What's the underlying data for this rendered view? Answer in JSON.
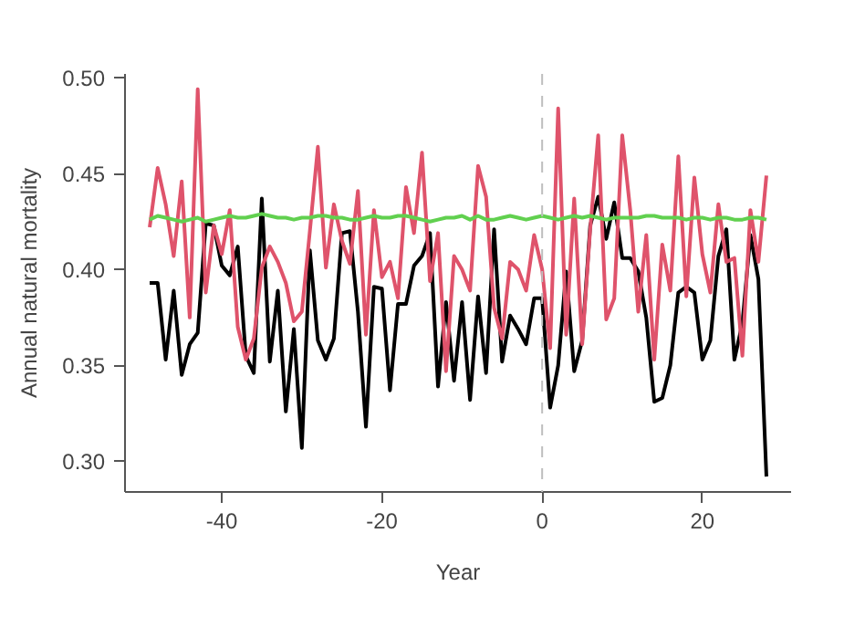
{
  "chart_data": {
    "type": "line",
    "xlabel": "Year",
    "ylabel": "Annual natural mortality",
    "x": [
      -49,
      -48,
      -47,
      -46,
      -45,
      -44,
      -43,
      -42,
      -41,
      -40,
      -39,
      -38,
      -37,
      -36,
      -35,
      -34,
      -33,
      -32,
      -31,
      -30,
      -29,
      -28,
      -27,
      -26,
      -25,
      -24,
      -23,
      -22,
      -21,
      -20,
      -19,
      -18,
      -17,
      -16,
      -15,
      -14,
      -13,
      -12,
      -11,
      -10,
      -9,
      -8,
      -7,
      -6,
      -5,
      -4,
      -3,
      -2,
      -1,
      0,
      1,
      2,
      3,
      4,
      5,
      6,
      7,
      8,
      9,
      10,
      11,
      12,
      13,
      14,
      15,
      16,
      17,
      18,
      19,
      20,
      21,
      22,
      23,
      24,
      25,
      26,
      27,
      28
    ],
    "series": [
      {
        "color": "#000000",
        "values": [
          0.393,
          0.393,
          0.353,
          0.389,
          0.345,
          0.361,
          0.367,
          0.424,
          0.423,
          0.402,
          0.397,
          0.412,
          0.355,
          0.346,
          0.437,
          0.352,
          0.389,
          0.326,
          0.369,
          0.307,
          0.41,
          0.363,
          0.353,
          0.364,
          0.419,
          0.42,
          0.378,
          0.318,
          0.391,
          0.39,
          0.337,
          0.382,
          0.382,
          0.402,
          0.407,
          0.419,
          0.339,
          0.383,
          0.342,
          0.383,
          0.332,
          0.386,
          0.346,
          0.421,
          0.352,
          0.376,
          0.369,
          0.361,
          0.385,
          0.385,
          0.328,
          0.35,
          0.399,
          0.347,
          0.363,
          0.423,
          0.438,
          0.416,
          0.435,
          0.406,
          0.406,
          0.399,
          0.375,
          0.331,
          0.333,
          0.35,
          0.388,
          0.391,
          0.388,
          0.353,
          0.363,
          0.407,
          0.421,
          0.353,
          0.372,
          0.418,
          0.395,
          0.292
        ]
      },
      {
        "color": "#df536b",
        "values": [
          0.422,
          0.453,
          0.434,
          0.407,
          0.446,
          0.375,
          0.494,
          0.388,
          0.423,
          0.408,
          0.431,
          0.37,
          0.353,
          0.364,
          0.401,
          0.412,
          0.404,
          0.393,
          0.373,
          0.378,
          0.42,
          0.464,
          0.401,
          0.434,
          0.415,
          0.403,
          0.441,
          0.366,
          0.431,
          0.396,
          0.404,
          0.385,
          0.443,
          0.419,
          0.461,
          0.394,
          0.419,
          0.347,
          0.407,
          0.4,
          0.389,
          0.454,
          0.438,
          0.38,
          0.364,
          0.404,
          0.4,
          0.389,
          0.418,
          0.4,
          0.359,
          0.484,
          0.366,
          0.437,
          0.361,
          0.421,
          0.47,
          0.374,
          0.385,
          0.47,
          0.431,
          0.378,
          0.418,
          0.353,
          0.413,
          0.389,
          0.459,
          0.386,
          0.448,
          0.408,
          0.388,
          0.434,
          0.404,
          0.406,
          0.355,
          0.431,
          0.404,
          0.449
        ]
      },
      {
        "color": "#61d04f",
        "values": [
          0.426,
          0.428,
          0.427,
          0.426,
          0.425,
          0.426,
          0.427,
          0.425,
          0.426,
          0.427,
          0.428,
          0.427,
          0.427,
          0.428,
          0.429,
          0.428,
          0.427,
          0.427,
          0.426,
          0.427,
          0.427,
          0.428,
          0.428,
          0.427,
          0.427,
          0.426,
          0.426,
          0.427,
          0.428,
          0.427,
          0.427,
          0.428,
          0.428,
          0.427,
          0.426,
          0.425,
          0.426,
          0.427,
          0.427,
          0.428,
          0.426,
          0.428,
          0.426,
          0.426,
          0.427,
          0.428,
          0.427,
          0.426,
          0.427,
          0.428,
          0.427,
          0.426,
          0.427,
          0.428,
          0.427,
          0.428,
          0.427,
          0.426,
          0.427,
          0.427,
          0.427,
          0.427,
          0.428,
          0.428,
          0.427,
          0.427,
          0.427,
          0.426,
          0.427,
          0.427,
          0.426,
          0.427,
          0.427,
          0.426,
          0.426,
          0.427,
          0.427,
          0.426
        ]
      }
    ],
    "xlim": [
      -52.08,
      31.08
    ],
    "ylim": [
      0.284,
      0.502
    ],
    "xticks": [
      -40,
      -20,
      0,
      20
    ],
    "yticks": [
      {
        "value": 0.3,
        "label": "0.30"
      },
      {
        "value": 0.35,
        "label": "0.35"
      },
      {
        "value": 0.4,
        "label": "0.40"
      },
      {
        "value": 0.45,
        "label": "0.45"
      },
      {
        "value": 0.5,
        "label": "0.50"
      }
    ],
    "ref_lines": [
      {
        "axis": "x",
        "value": 0,
        "color": "#bebebe",
        "line_style": "dashed"
      }
    ],
    "grid": false,
    "marker": "none",
    "line_style": "solid"
  }
}
